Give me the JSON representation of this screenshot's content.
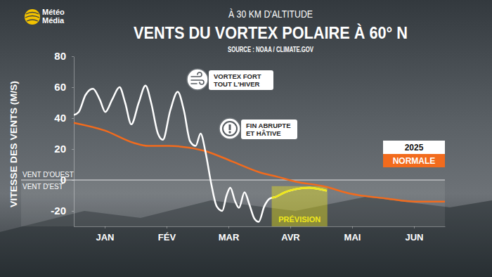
{
  "chart_data": {
    "type": "line",
    "logo": [
      "Météo",
      "Média"
    ],
    "subtitle": "À 30 KM D'ALTITUDE",
    "title": "VENTS DU VORTEX POLAIRE À 60° N",
    "source": "SOURCE : NOAA / CLIMATE.GOV",
    "y_label": "VITESSE DES VENTS (M/S)",
    "xlim": [
      0,
      6
    ],
    "xticks": [
      {
        "value": 0.5,
        "label": "JAN"
      },
      {
        "value": 1.5,
        "label": "FÉV"
      },
      {
        "value": 2.5,
        "label": "MAR"
      },
      {
        "value": 3.5,
        "label": "AVR"
      },
      {
        "value": 4.5,
        "label": "MAI"
      },
      {
        "value": 5.5,
        "label": "JUN"
      }
    ],
    "ylim": [
      -30,
      80
    ],
    "yticks": [
      -20,
      0,
      20,
      40,
      60,
      80
    ],
    "grid": false,
    "legend": "right",
    "series": [
      {
        "name": "2025",
        "color": "#ffffff",
        "x": [
          0.0,
          0.08,
          0.19,
          0.31,
          0.42,
          0.51,
          0.62,
          0.74,
          0.83,
          0.93,
          1.05,
          1.16,
          1.25,
          1.36,
          1.44,
          1.56,
          1.68,
          1.78,
          1.88,
          1.97,
          2.05,
          2.13,
          2.22,
          2.31,
          2.4,
          2.47,
          2.53,
          2.61,
          2.67,
          2.76,
          2.84,
          2.92,
          2.99,
          3.08,
          3.17,
          3.26,
          3.41,
          3.58,
          3.81,
          3.98,
          4.09
        ],
        "values": [
          42,
          44,
          55,
          59,
          52,
          44,
          52,
          60,
          50,
          36,
          50,
          61,
          50,
          30,
          26,
          45,
          57,
          45,
          25,
          22,
          30,
          18,
          -2,
          -17,
          -20,
          -10,
          -5,
          -14,
          -18,
          -8,
          -16,
          -25,
          -27,
          -17,
          -12,
          -11,
          -8,
          -6,
          -5,
          -6,
          -7
        ]
      },
      {
        "name": "NORMALE",
        "color": "#f26b1d",
        "x": [
          0.0,
          0.5,
          0.97,
          1.2,
          1.53,
          2.1,
          2.56,
          3.0,
          3.3,
          3.58,
          4.03,
          4.49,
          5.06,
          5.51,
          6.0
        ],
        "values": [
          37,
          32,
          24,
          22,
          22,
          19,
          12,
          5,
          2,
          -1,
          -4,
          -9,
          -12,
          -14,
          -14
        ]
      }
    ],
    "forecast": {
      "x": [
        3.2,
        4.1
      ],
      "y": [
        -30,
        -4
      ],
      "label": "PRÉVISION",
      "color": "#f0e81a"
    },
    "wind_labels": {
      "value": 0,
      "above": "VENT D'OUEST",
      "below": "VENT D'EST"
    },
    "annotations": [
      {
        "text": [
          "VORTEX FORT",
          "TOUT L'HIVER"
        ]
      },
      {
        "text": [
          "FIN ABRUPTE",
          "ET HÂTIVE"
        ]
      }
    ]
  }
}
